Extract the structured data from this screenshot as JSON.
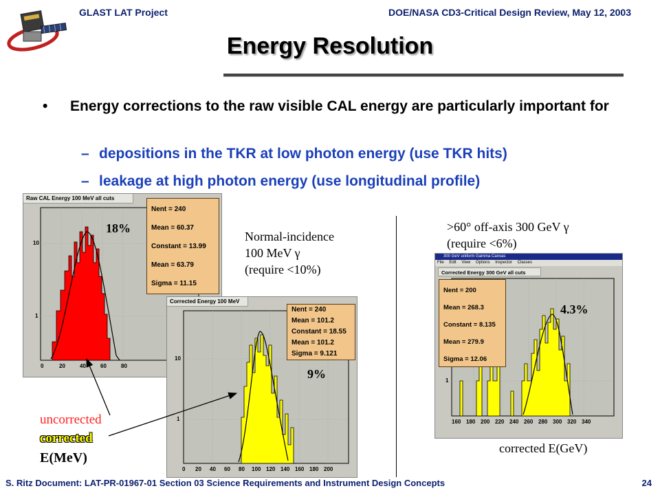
{
  "header": {
    "left": "GLAST LAT Project",
    "right": "DOE/NASA CD3-Critical Design Review, May 12, 2003"
  },
  "title": "Energy Resolution",
  "bullet": {
    "text": "Energy corrections to the raw visible CAL energy are particularly important for",
    "subs": [
      "depositions in the TKR at low photon energy (use TKR hits)",
      "leakage at high photon energy (use longitudinal profile)"
    ]
  },
  "plot_raw": {
    "title": "Raw CAL Energy 100 MeV all cuts",
    "stats": [
      "Nent = 240",
      "Mean  = 60.37",
      "Constant = 13.99",
      "Mean     = 63.79",
      "Sigma    = 11.15"
    ],
    "pct": "18%",
    "xticks": [
      "0",
      "20",
      "40",
      "60",
      "80"
    ],
    "yticks": [
      "10",
      "1"
    ]
  },
  "plot_corr100": {
    "title": "Corrected Energy 100 MeV",
    "stats": [
      "Nent = 240",
      "Mean  = 101.2",
      "Constant = 18.55",
      "Mean     = 101.2",
      "Sigma    = 9.121"
    ],
    "pct": "9%",
    "xticks": [
      "0",
      "20",
      "40",
      "60",
      "80",
      "100",
      "120",
      "140",
      "160",
      "180",
      "200"
    ],
    "yticks": [
      "10",
      "1"
    ]
  },
  "plot_corr300": {
    "window_title": "300 GeV uniform Gamma Canvas",
    "menu": [
      "File",
      "Edit",
      "View",
      "Options",
      "Inspector",
      "Classes"
    ],
    "title": "Corrected Energy 300 GeV all cuts",
    "stats": [
      "Nent = 200",
      "Mean  = 268.3",
      "Constant = 8.135",
      "Mean     = 279.9",
      "Sigma    = 12.06"
    ],
    "pct": "4.3%",
    "xticks": [
      "160",
      "180",
      "200",
      "220",
      "240",
      "260",
      "280",
      "300",
      "320",
      "340"
    ],
    "yticks": [
      "1"
    ]
  },
  "annotations": {
    "normal_incidence": [
      "Normal-incidence",
      "100 MeV γ",
      "(require <10%)"
    ],
    "off_axis": [
      ">60° off-axis 300 GeV γ",
      "(require <6%)"
    ],
    "legend_uncorrected": "uncorrected",
    "legend_corrected": "corrected",
    "xlabel_mev": "E(MeV)",
    "xlabel_gev": "corrected E(GeV)"
  },
  "footer": {
    "left": "S. Ritz  Document: LAT-PR-01967-01   Section 03 Science Requirements and Instrument Design Concepts",
    "page": "24"
  },
  "colors": {
    "header_text": "#0a1f6e",
    "sub_bullet_text": "#1a3fb8",
    "raw_fill": "#ff0000",
    "corrected_fill": "#ffff00",
    "stat_box": "#f2c68a",
    "legend_uncorrected": "#ff2020",
    "legend_corrected": "#ffff00"
  }
}
